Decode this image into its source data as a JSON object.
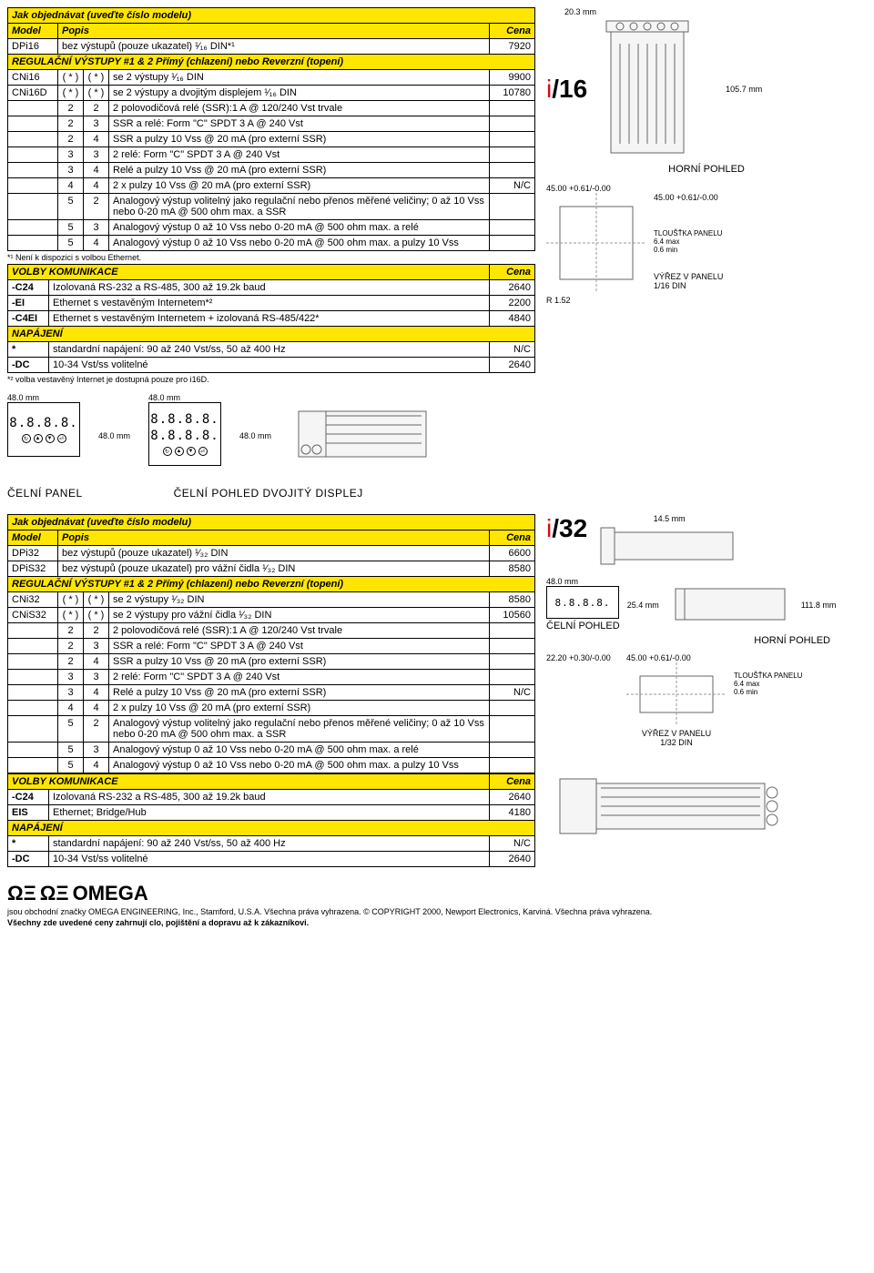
{
  "section1": {
    "title": "Jak objednávat (uveďte číslo modelu)",
    "headers": {
      "model": "Model",
      "desc": "Popis",
      "price": "Cena"
    },
    "rows_top": [
      {
        "model": "DPi16",
        "desc": "bez výstupů (pouze ukazatel) ¹⁄₁₆ DIN*¹",
        "price": "7920"
      }
    ],
    "reg_title": "REGULAČNÍ VÝSTUPY #1 & 2 Přímý (chlazení) nebo Reverzní (topení)",
    "reg_rows": [
      {
        "model": "CNi16",
        "o1": "( * )",
        "o2": "( * )",
        "desc": "se 2 výstupy ¹⁄₁₆ DIN",
        "price": "9900"
      },
      {
        "model": "CNi16D",
        "o1": "( * )",
        "o2": "( * )",
        "desc": "se 2 výstupy a dvojitým displejem ¹⁄₁₆ DIN",
        "price": "10780"
      },
      {
        "model": "",
        "o1": "2",
        "o2": "2",
        "desc": "2 polovodičová relé (SSR):1 A @ 120/240 Vst trvale",
        "price": ""
      },
      {
        "model": "",
        "o1": "2",
        "o2": "3",
        "desc": "SSR a relé: Form \"C\" SPDT 3 A @ 240 Vst",
        "price": ""
      },
      {
        "model": "",
        "o1": "2",
        "o2": "4",
        "desc": "SSR a pulzy 10 Vss @ 20 mA (pro externí SSR)",
        "price": ""
      },
      {
        "model": "",
        "o1": "3",
        "o2": "3",
        "desc": "2 relé: Form \"C\" SPDT 3 A @ 240 Vst",
        "price": ""
      },
      {
        "model": "",
        "o1": "3",
        "o2": "4",
        "desc": "Relé a pulzy 10 Vss @ 20 mA (pro externí SSR)",
        "price": ""
      },
      {
        "model": "",
        "o1": "4",
        "o2": "4",
        "desc": "2 x pulzy 10 Vss @ 20 mA (pro externí SSR)",
        "price": "N/C"
      },
      {
        "model": "",
        "o1": "5",
        "o2": "2",
        "desc": "Analogový výstup volitelný jako regulační nebo přenos měřené veličiny; 0 až 10 Vss nebo 0-20 mA @ 500 ohm max. a SSR",
        "price": ""
      },
      {
        "model": "",
        "o1": "5",
        "o2": "3",
        "desc": "Analogový výstup 0 až 10 Vss nebo 0-20 mA @ 500 ohm max. a relé",
        "price": ""
      },
      {
        "model": "",
        "o1": "5",
        "o2": "4",
        "desc": "Analogový výstup 0 až 10 Vss nebo 0-20 mA @ 500 ohm max. a pulzy 10 Vss",
        "price": ""
      }
    ],
    "note1": "*¹ Není k dispozici s volbou Ethernet.",
    "comm_title": "VOLBY KOMUNIKACE",
    "comm_price": "Cena",
    "comm_rows": [
      {
        "code": "-C24",
        "desc": "Izolovaná RS-232 a RS-485, 300 až 19.2k baud",
        "price": "2640"
      },
      {
        "code": "-EI",
        "desc": "Ethernet s vestavěným Internetem*²",
        "price": "2200"
      },
      {
        "code": "-C4EI",
        "desc": "Ethernet s vestavěným Internetem + izolovaná RS-485/422*",
        "price": "4840"
      }
    ],
    "power_title": "NAPÁJENÍ",
    "power_rows": [
      {
        "code": "*",
        "desc": "standardní napájení: 90 až 240 Vst/ss, 50 až 400 Hz",
        "price": "N/C"
      },
      {
        "code": "-DC",
        "desc": "10-34 Vst/ss volitelné",
        "price": "2640"
      }
    ],
    "note2": "*² volba vestavěný Internet je dostupná pouze pro i16D."
  },
  "diagram1": {
    "label_i": "i",
    "label_slash": "/",
    "label_num": "16",
    "top_dim": "20.3 mm",
    "side_dim": "105.7 mm",
    "caption": "HORNÍ POHLED",
    "bottom_left": "45.00 +0.61/-0.00",
    "bottom_right": "45.00 +0.61/-0.00",
    "thickness_title": "TLOUŠŤKA PANELU",
    "thickness_max": "6.4 max",
    "thickness_min": "0.6 min",
    "r_dim": "R 1.52",
    "cutout_title": "VÝŘEZ V PANELU",
    "cutout_din": "1/16 DIN"
  },
  "panels1": {
    "dim1": "48.0 mm",
    "dim2": "48.0 mm",
    "dim3": "48.0 mm",
    "dim4": "48.0 mm",
    "seg": "8.8.8.8.",
    "label1": "ČELNÍ PANEL",
    "label2": "ČELNÍ POHLED DVOJITÝ DISPLEJ"
  },
  "section2": {
    "title": "Jak objednávat (uveďte číslo modelu)",
    "headers": {
      "model": "Model",
      "desc": "Popis",
      "price": "Cena"
    },
    "rows_top": [
      {
        "model": "DPi32",
        "desc": "bez výstupů (pouze ukazatel) ¹⁄₃₂ DIN",
        "price": "6600"
      },
      {
        "model": "DPiS32",
        "desc": "bez výstupů (pouze ukazatel) pro vážní čidla ¹⁄₃₂ DIN",
        "price": "8580"
      }
    ],
    "reg_title": "REGULAČNÍ VÝSTUPY #1 & 2 Přímý (chlazení) nebo Reverzní (topení)",
    "reg_rows": [
      {
        "model": "CNi32",
        "o1": "( * )",
        "o2": "( * )",
        "desc": "se 2 výstupy ¹⁄₃₂ DIN",
        "price": "8580"
      },
      {
        "model": "CNiS32",
        "o1": "( * )",
        "o2": "( * )",
        "desc": "se 2 výstupy pro vážní čidla ¹⁄₃₂ DIN",
        "price": "10560"
      },
      {
        "model": "",
        "o1": "2",
        "o2": "2",
        "desc": "2 polovodičová relé (SSR):1 A @ 120/240 Vst trvale",
        "price": ""
      },
      {
        "model": "",
        "o1": "2",
        "o2": "3",
        "desc": "SSR a relé: Form \"C\" SPDT 3 A @ 240 Vst",
        "price": ""
      },
      {
        "model": "",
        "o1": "2",
        "o2": "4",
        "desc": "SSR a pulzy 10 Vss @ 20 mA (pro externí SSR)",
        "price": ""
      },
      {
        "model": "",
        "o1": "3",
        "o2": "3",
        "desc": "2 relé: Form \"C\" SPDT 3 A @ 240 Vst",
        "price": ""
      },
      {
        "model": "",
        "o1": "3",
        "o2": "4",
        "desc": "Relé a pulzy 10 Vss @ 20 mA (pro externí SSR)",
        "price": "N/C"
      },
      {
        "model": "",
        "o1": "4",
        "o2": "4",
        "desc": "2 x pulzy 10 Vss @ 20 mA (pro externí SSR)",
        "price": ""
      },
      {
        "model": "",
        "o1": "5",
        "o2": "2",
        "desc": "Analogový výstup volitelný jako regulační nebo přenos měřené veličiny; 0 až 10 Vss nebo 0-20 mA @ 500 ohm max. a SSR",
        "price": ""
      },
      {
        "model": "",
        "o1": "5",
        "o2": "3",
        "desc": "Analogový výstup 0 až 10 Vss nebo 0-20 mA @ 500 ohm max. a relé",
        "price": ""
      },
      {
        "model": "",
        "o1": "5",
        "o2": "4",
        "desc": "Analogový výstup 0 až 10 Vss nebo 0-20 mA @ 500 ohm max. a pulzy 10 Vss",
        "price": ""
      }
    ],
    "comm_title": "VOLBY KOMUNIKACE",
    "comm_price": "Cena",
    "comm_rows": [
      {
        "code": "-C24",
        "desc": "Izolovaná RS-232 a RS-485, 300 až 19.2k baud",
        "price": "2640"
      },
      {
        "code": "EIS",
        "desc": "Ethernet; Bridge/Hub",
        "price": "4180"
      }
    ],
    "power_title": "NAPÁJENÍ",
    "power_rows": [
      {
        "code": "*",
        "desc": "standardní napájení: 90 až 240 Vst/ss, 50 až 400 Hz",
        "price": "N/C"
      },
      {
        "code": "-DC",
        "desc": "10-34 Vst/ss volitelné",
        "price": "2640"
      }
    ]
  },
  "diagram2": {
    "label_i": "i",
    "label_slash": "/",
    "label_num": "32",
    "top_dim": "14.5 mm",
    "panel_dim": "48.0 mm",
    "panel_h": "25.4 mm",
    "side_dim": "111.8 mm",
    "caption1": "ČELNÍ POHLED",
    "caption2": "HORNÍ POHLED",
    "bottom_left": "22.20 +0.30/-0.00",
    "bottom_right": "45.00 +0.61/-0.00",
    "thickness_title": "TLOUŠŤKA PANELU",
    "thickness_max": "6.4 max",
    "thickness_min": "0.6 min",
    "cutout_title": "VÝŘEZ V PANELU",
    "cutout_din": "1/32 DIN",
    "seg": "8.8.8.8."
  },
  "footer": {
    "omega": "OMEGA",
    "line1": "jsou obchodní značky OMEGA ENGINEERING, Inc., Stamford, U.S.A. Všechna práva vyhrazena. © COPYRIGHT 2000, Newport Electronics, Karviná. Všechna práva vyhrazena.",
    "line2": "Všechny zde uvedené ceny zahrnují clo, pojištění a dopravu až k zákazníkovi."
  }
}
